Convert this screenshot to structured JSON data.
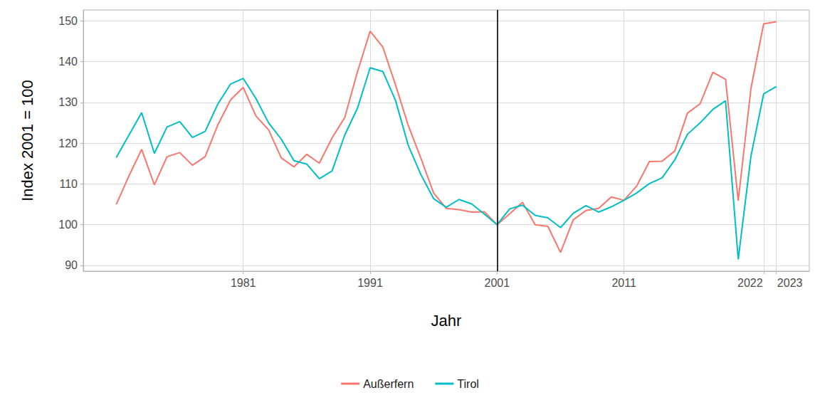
{
  "chart_data": {
    "type": "line",
    "x_label": "Jahr",
    "y_label": "Index 2001 = 100",
    "x": [
      1971,
      1972,
      1973,
      1974,
      1975,
      1976,
      1977,
      1978,
      1979,
      1980,
      1981,
      1982,
      1983,
      1984,
      1985,
      1986,
      1987,
      1988,
      1989,
      1990,
      1991,
      1992,
      1993,
      1994,
      1995,
      1996,
      1997,
      1998,
      1999,
      2000,
      2001,
      2002,
      2003,
      2004,
      2005,
      2006,
      2007,
      2008,
      2009,
      2010,
      2011,
      2012,
      2013,
      2014,
      2015,
      2016,
      2017,
      2018,
      2019,
      2020,
      2021,
      2022,
      2023
    ],
    "series": [
      {
        "name": "Außerfern",
        "color": "#F8766D",
        "values": [
          105.0,
          112.0,
          118.5,
          109.8,
          116.7,
          117.7,
          114.6,
          116.7,
          124.5,
          130.6,
          133.7,
          126.7,
          123.3,
          116.4,
          114.2,
          117.3,
          115.1,
          121.3,
          126.3,
          137.5,
          147.5,
          143.6,
          134.3,
          124.4,
          116.3,
          107.8,
          104.0,
          103.7,
          103.1,
          103.2,
          100.0,
          102.7,
          105.5,
          100.0,
          99.6,
          93.2,
          101.2,
          103.5,
          104.0,
          106.8,
          106.0,
          109.5,
          115.5,
          115.6,
          118.1,
          127.4,
          129.7,
          137.4,
          135.7,
          105.9,
          133.4,
          149.3,
          149.8
        ]
      },
      {
        "name": "Tirol",
        "color": "#00BFC4",
        "values": [
          116.5,
          122.0,
          127.5,
          117.5,
          124.0,
          125.3,
          121.4,
          122.9,
          129.6,
          134.5,
          135.9,
          131.0,
          125.0,
          121.0,
          115.7,
          114.9,
          111.3,
          113.2,
          122.0,
          128.6,
          138.5,
          137.6,
          130.5,
          119.5,
          112.3,
          106.4,
          104.3,
          106.2,
          105.1,
          102.6,
          100.0,
          103.9,
          104.8,
          102.3,
          101.7,
          99.3,
          102.8,
          104.7,
          103.1,
          104.4,
          106.0,
          107.8,
          110.1,
          111.5,
          115.9,
          122.2,
          125.0,
          128.3,
          130.4,
          91.5,
          116.8,
          132.1,
          133.9
        ]
      }
    ],
    "xlim": [
      1968.4,
      2025.6
    ],
    "xticks": [
      1981,
      1991,
      2001,
      2011,
      2022,
      2023
    ],
    "ylim": [
      88.6,
      152.7
    ],
    "yticks": [
      90,
      100,
      110,
      120,
      130,
      140,
      150
    ],
    "vline_x": 2001,
    "grid": true,
    "legend": "bottom"
  }
}
